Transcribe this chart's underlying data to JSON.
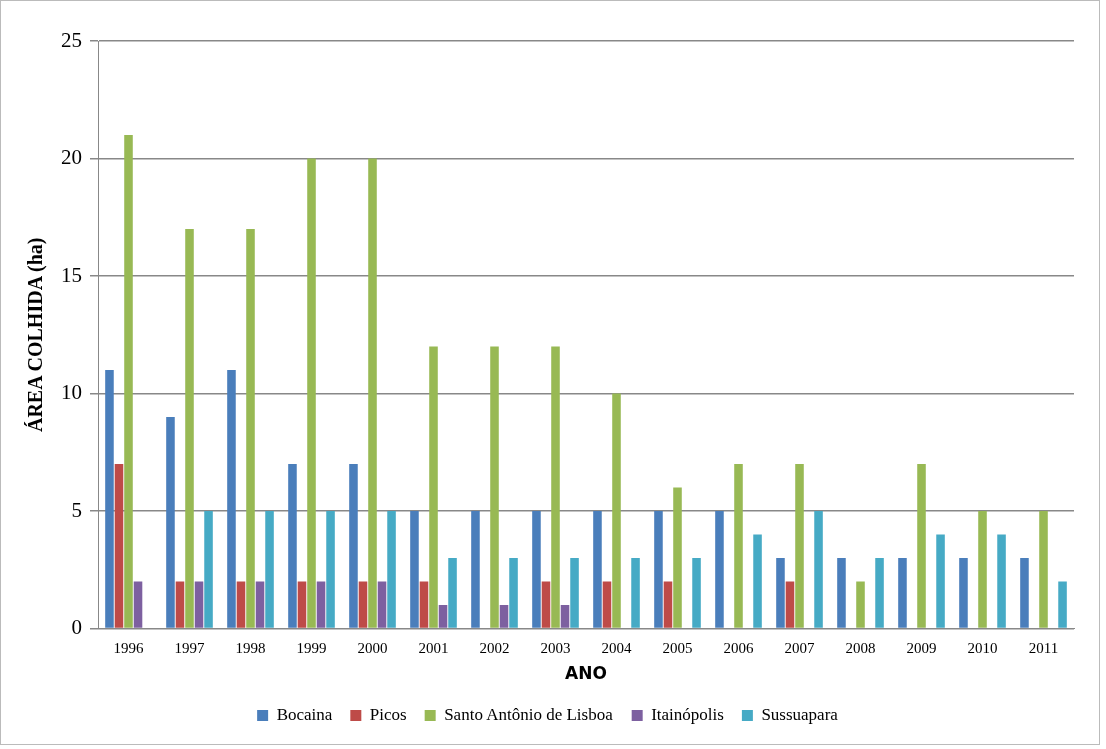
{
  "chart_data": {
    "type": "bar",
    "xlabel": "ANO",
    "ylabel": "ÁREA COLHIDA (ha)",
    "categories": [
      "1996",
      "1997",
      "1998",
      "1999",
      "2000",
      "2001",
      "2002",
      "2003",
      "2004",
      "2005",
      "2006",
      "2007",
      "2008",
      "2009",
      "2010",
      "2011"
    ],
    "series": [
      {
        "name": "Bocaina",
        "color": "#4a7ebb",
        "values": [
          11,
          9,
          11,
          7,
          7,
          5,
          5,
          5,
          5,
          5,
          5,
          3,
          3,
          3,
          3,
          3
        ]
      },
      {
        "name": "Picos",
        "color": "#be4b48",
        "values": [
          7,
          2,
          2,
          2,
          2,
          2,
          null,
          2,
          2,
          2,
          null,
          2,
          null,
          null,
          null,
          null
        ]
      },
      {
        "name": "Santo Antônio de Lisboa",
        "color": "#98b954",
        "values": [
          21,
          17,
          17,
          20,
          20,
          12,
          12,
          12,
          10,
          6,
          7,
          7,
          2,
          7,
          5,
          5
        ]
      },
      {
        "name": "Itainópolis",
        "color": "#7d60a0",
        "values": [
          2,
          2,
          2,
          2,
          2,
          1,
          1,
          1,
          null,
          null,
          null,
          null,
          null,
          null,
          null,
          null
        ]
      },
      {
        "name": "Sussuapara",
        "color": "#46aac5",
        "values": [
          null,
          5,
          5,
          5,
          5,
          3,
          3,
          3,
          3,
          3,
          4,
          5,
          3,
          4,
          4,
          2
        ]
      }
    ],
    "ylim": [
      0,
      25
    ],
    "yticks": [
      0,
      5,
      10,
      15,
      20,
      25
    ],
    "grid": "y",
    "legend": "bottom"
  }
}
